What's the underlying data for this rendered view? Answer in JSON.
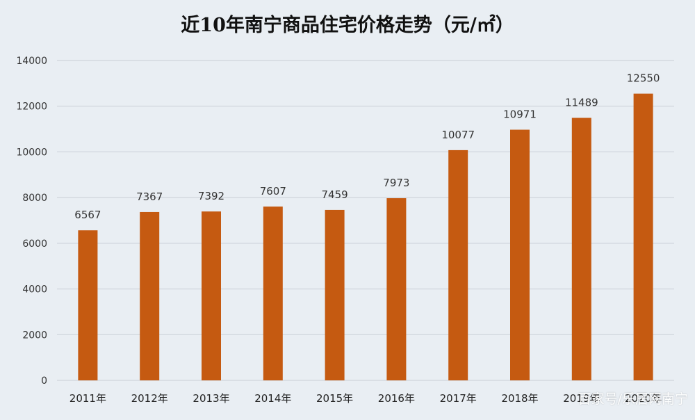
{
  "chart_data": {
    "type": "bar",
    "title": "近10年南宁商品住宅价格走势（元/㎡）",
    "categories": [
      "2011年",
      "2012年",
      "2013年",
      "2014年",
      "2015年",
      "2016年",
      "2017年",
      "2018年",
      "2019年",
      "2020年"
    ],
    "values": [
      6567,
      7367,
      7392,
      7607,
      7459,
      7973,
      10077,
      10971,
      11489,
      12550
    ],
    "ylim": [
      0,
      14000
    ],
    "yticks": [
      "0",
      "2000",
      "4000",
      "6000",
      "8000",
      "10000",
      "12000",
      "14000"
    ],
    "grid": true,
    "bar_color": "#c55a11"
  },
  "watermark": "百家号/乐居网南宁"
}
